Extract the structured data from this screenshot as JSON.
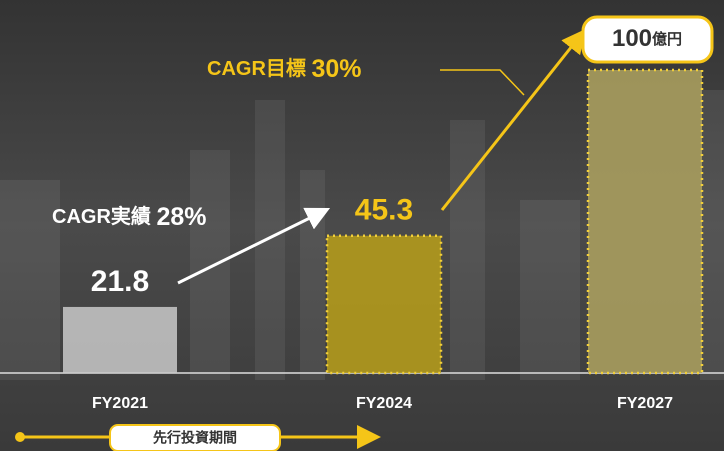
{
  "chart_data": {
    "type": "bar",
    "categories": [
      "FY2021",
      "FY2024",
      "FY2027"
    ],
    "values": [
      21.8,
      45.3,
      100
    ],
    "colors": [
      "#c9c9c9",
      "#b29a1c",
      "#a99d5e"
    ],
    "value_unit": "億円",
    "annotations": [
      {
        "text": "CAGR実績",
        "value": "28%"
      },
      {
        "text": "CAGR目標",
        "value": "30%"
      }
    ],
    "period_label": "先行投資期間"
  }
}
